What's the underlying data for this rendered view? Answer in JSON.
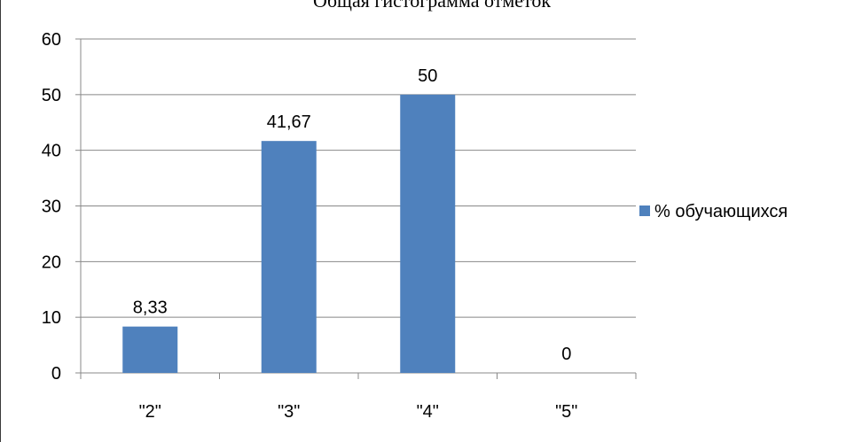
{
  "chart_data": {
    "type": "bar",
    "title": "Общая гистограмма отметок",
    "categories": [
      "\"2\"",
      "\"3\"",
      "\"4\"",
      "\"5\""
    ],
    "series": [
      {
        "name": "% обучающихся",
        "values": [
          8.33,
          41.67,
          50,
          0
        ],
        "color": "#4f81bd"
      }
    ],
    "data_labels": [
      "8,33",
      "41,67",
      "50",
      "0"
    ],
    "yticks": [
      "0",
      "10",
      "20",
      "30",
      "40",
      "50",
      "60"
    ],
    "ylim": [
      0,
      60
    ],
    "grid": true,
    "legend_position": "right"
  }
}
